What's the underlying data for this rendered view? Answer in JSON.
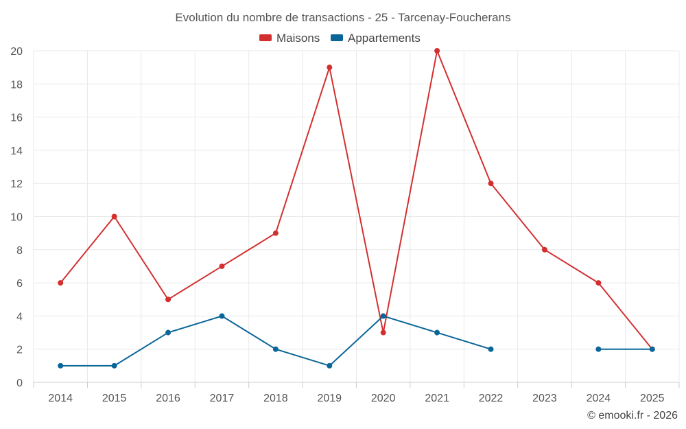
{
  "chart_data": {
    "type": "line",
    "title": "Evolution du nombre de transactions - 25 - Tarcenay-Foucherans",
    "categories": [
      "2014",
      "2015",
      "2016",
      "2017",
      "2018",
      "2019",
      "2020",
      "2021",
      "2022",
      "2023",
      "2024",
      "2025"
    ],
    "ylim": [
      0,
      20
    ],
    "yticks": [
      0,
      2,
      4,
      6,
      8,
      10,
      12,
      14,
      16,
      18,
      20
    ],
    "xlabel": "",
    "ylabel": "",
    "grid": true,
    "legend_position": "top-center",
    "series": [
      {
        "name": "Maisons",
        "color": "#d32f2f",
        "values": [
          6,
          10,
          5,
          7,
          9,
          19,
          3,
          20,
          12,
          8,
          6,
          2
        ]
      },
      {
        "name": "Appartements",
        "color": "#0a6699",
        "values": [
          1,
          1,
          3,
          4,
          2,
          1,
          4,
          3,
          2,
          null,
          2,
          2
        ]
      }
    ]
  },
  "credit": "© emooki.fr - 2026"
}
